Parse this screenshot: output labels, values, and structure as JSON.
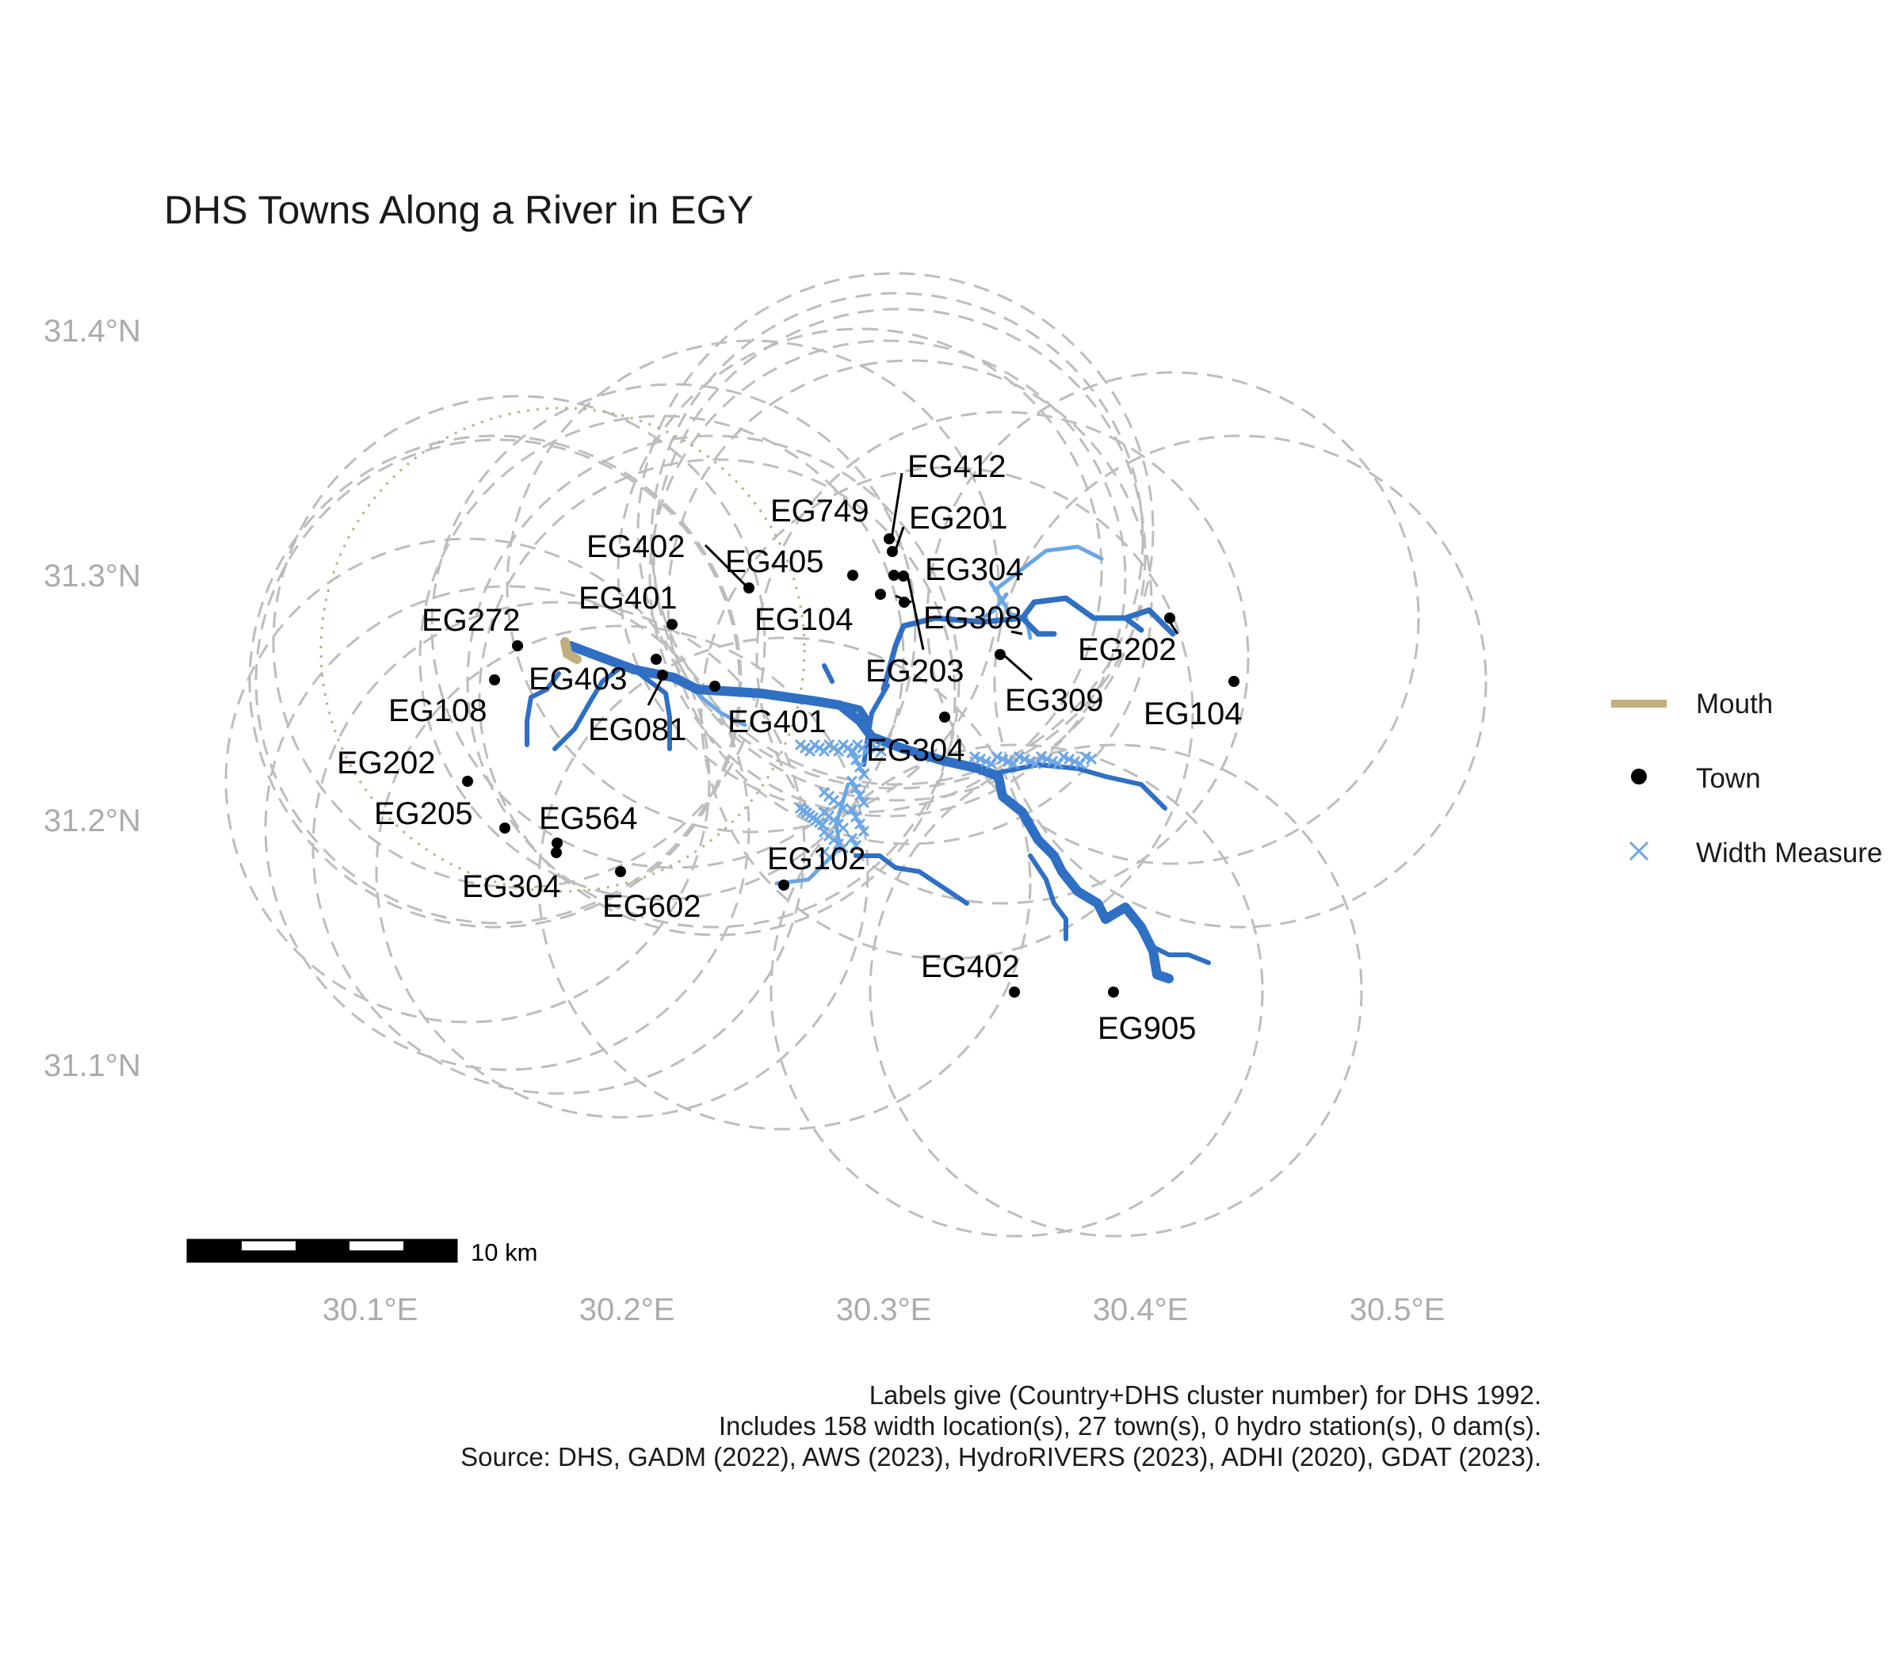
{
  "title": "DHS Towns Along a River in EGY",
  "axes": {
    "y_ticks": [
      "31.4°N",
      "31.3°N",
      "31.2°N",
      "31.1°N"
    ],
    "x_ticks": [
      "30.1°E",
      "30.2°E",
      "30.3°E",
      "30.4°E",
      "30.5°E"
    ]
  },
  "legend": {
    "position": "right",
    "items": [
      {
        "label": "Mouth",
        "symbol": "line",
        "color": "#bfae7f"
      },
      {
        "label": "Town",
        "symbol": "dot",
        "color": "#000000"
      },
      {
        "label": "Width Measure",
        "symbol": "cross",
        "color": "#6aa6e6"
      }
    ]
  },
  "scale_bar": {
    "label": "10 km"
  },
  "caption": [
    "Labels give (Country+DHS cluster number) for DHS 1992.",
    "Includes 158 width location(s), 27 town(s), 0 hydro station(s), 0 dam(s).",
    "Source: DHS, GADM (2022), AWS (2023), HydroRIVERS (2023), ADHI (2020), GDAT (2023)."
  ],
  "colors": {
    "river": "#2f6fc4",
    "river_light": "#6aa6e6",
    "buffer": "#bdbdbd",
    "mouth": "#bfae7f",
    "town": "#000000"
  },
  "towns": [
    {
      "label": "EG412",
      "lon": 30.303,
      "lat": 31.315
    },
    {
      "label": "EG201",
      "lon": 30.305,
      "lat": 31.308
    },
    {
      "label": "EG749",
      "lon": 30.293,
      "lat": 31.3
    },
    {
      "label": "EG304",
      "lon": 30.306,
      "lat": 31.299
    },
    {
      "label": "EG402",
      "lon": 30.251,
      "lat": 31.294
    },
    {
      "label": "EG405",
      "lon": 30.293,
      "lat": 31.3
    },
    {
      "label": "EG104",
      "lon": 30.303,
      "lat": 31.292
    },
    {
      "label": "EG308",
      "lon": 30.31,
      "lat": 31.29
    },
    {
      "label": "EG203",
      "lon": 30.31,
      "lat": 31.298
    },
    {
      "label": "EG272",
      "lon": 30.16,
      "lat": 31.27
    },
    {
      "label": "EG401",
      "lon": 30.22,
      "lat": 31.28
    },
    {
      "label": "EG202",
      "lon": 30.415,
      "lat": 31.282
    },
    {
      "label": "EG309",
      "lon": 30.347,
      "lat": 31.27
    },
    {
      "label": "EG104",
      "lon": 30.441,
      "lat": 31.256
    },
    {
      "label": "EG108",
      "lon": 30.15,
      "lat": 31.257
    },
    {
      "label": "EG403",
      "lon": 30.214,
      "lat": 31.264
    },
    {
      "label": "EG081",
      "lon": 30.215,
      "lat": 31.257
    },
    {
      "label": "EG401",
      "lon": 30.237,
      "lat": 31.254
    },
    {
      "label": "EG304",
      "lon": 30.325,
      "lat": 31.241
    },
    {
      "label": "EG202",
      "lon": 30.14,
      "lat": 31.215
    },
    {
      "label": "EG205",
      "lon": 30.155,
      "lat": 31.196
    },
    {
      "label": "EG564",
      "lon": 30.175,
      "lat": 31.189
    },
    {
      "label": "EG304",
      "lon": 30.175,
      "lat": 31.186
    },
    {
      "label": "EG602",
      "lon": 30.2,
      "lat": 31.178
    },
    {
      "label": "EG102",
      "lon": 30.263,
      "lat": 31.173
    },
    {
      "label": "EG402",
      "lon": 30.351,
      "lat": 31.13
    },
    {
      "label": "EG905",
      "lon": 30.391,
      "lat": 31.129
    }
  ]
}
